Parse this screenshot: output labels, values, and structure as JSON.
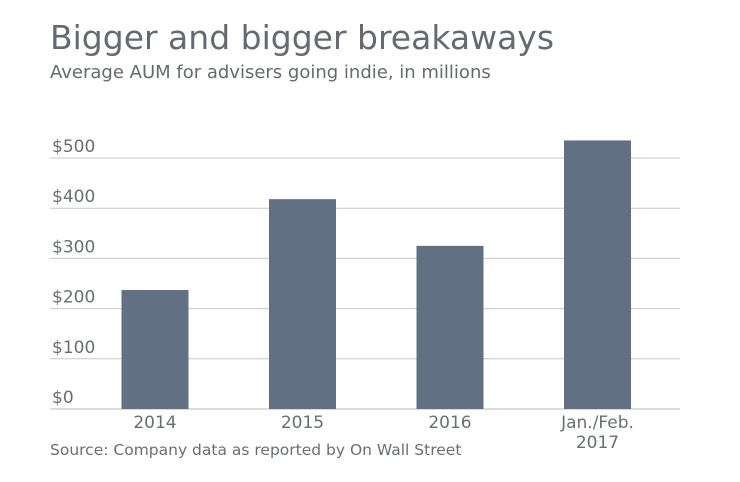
{
  "chart_data": {
    "type": "bar",
    "title": "Bigger and bigger breakaways",
    "subtitle": "Average AUM for advisers going indie, in millions",
    "source": "Source: Company data as reported by On Wall Street",
    "categories": [
      "2014",
      "2015",
      "2016",
      "Jan./Feb. 2017"
    ],
    "category_lines": [
      [
        "2014"
      ],
      [
        "2015"
      ],
      [
        "2016"
      ],
      [
        "Jan./Feb.",
        "2017"
      ]
    ],
    "values": [
      237,
      418,
      325,
      535
    ],
    "ylim": [
      0,
      500
    ],
    "yticks": [
      0,
      100,
      200,
      300,
      400,
      500
    ],
    "ytick_labels": [
      "$0",
      "$100",
      "$200",
      "$300",
      "$400",
      "$500"
    ],
    "grid": true,
    "bar_color": "#627084",
    "grid_color": "#c8c8c8"
  }
}
